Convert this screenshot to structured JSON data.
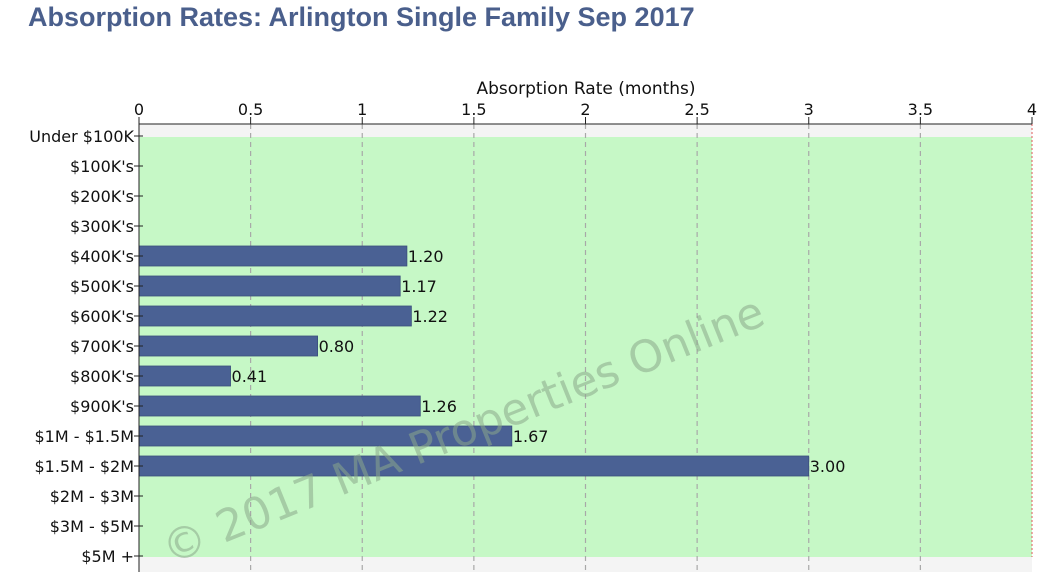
{
  "page": {
    "title": "Absorption Rates: Arlington Single Family Sep 2017",
    "watermark": "© 2017 MA Properties Online"
  },
  "chart_data": {
    "type": "bar",
    "orientation": "horizontal",
    "title": "Absorption Rates: Arlington Single Family Sep 2017",
    "xlabel": "Absorption Rate (months)",
    "ylabel": "",
    "xlim": [
      0,
      4
    ],
    "x_ticks": [
      0,
      0.5,
      1,
      1.5,
      2,
      2.5,
      3,
      3.5,
      4
    ],
    "x_tick_labels": [
      "0",
      "0.5",
      "1",
      "1.5",
      "2",
      "2.5",
      "3",
      "3.5",
      "4"
    ],
    "x_axis_position": "top",
    "grid": true,
    "categories": [
      "Under $100K",
      "$100K's",
      "$200K's",
      "$300K's",
      "$400K's",
      "$500K's",
      "$600K's",
      "$700K's",
      "$800K's",
      "$900K's",
      "$1M - $1.5M",
      "$1.5M - $2M",
      "$2M - $3M",
      "$3M - $5M",
      "$5M +"
    ],
    "values": [
      null,
      null,
      null,
      null,
      1.2,
      1.17,
      1.22,
      0.8,
      0.41,
      1.26,
      1.67,
      3.0,
      null,
      null,
      null
    ],
    "data_labels": [
      "",
      "",
      "",
      "",
      "1.20",
      "1.17",
      "1.22",
      "0.80",
      "0.41",
      "1.26",
      "1.67",
      "3.00",
      "",
      "",
      ""
    ],
    "colors": {
      "bar": "#4a6194",
      "bar_edge": "#3a4f7c",
      "plot_background": "#c6f8c6",
      "grid": "#a8a8a8",
      "title": "#4a5f8c",
      "threshold_line": "#e05a5a"
    }
  }
}
